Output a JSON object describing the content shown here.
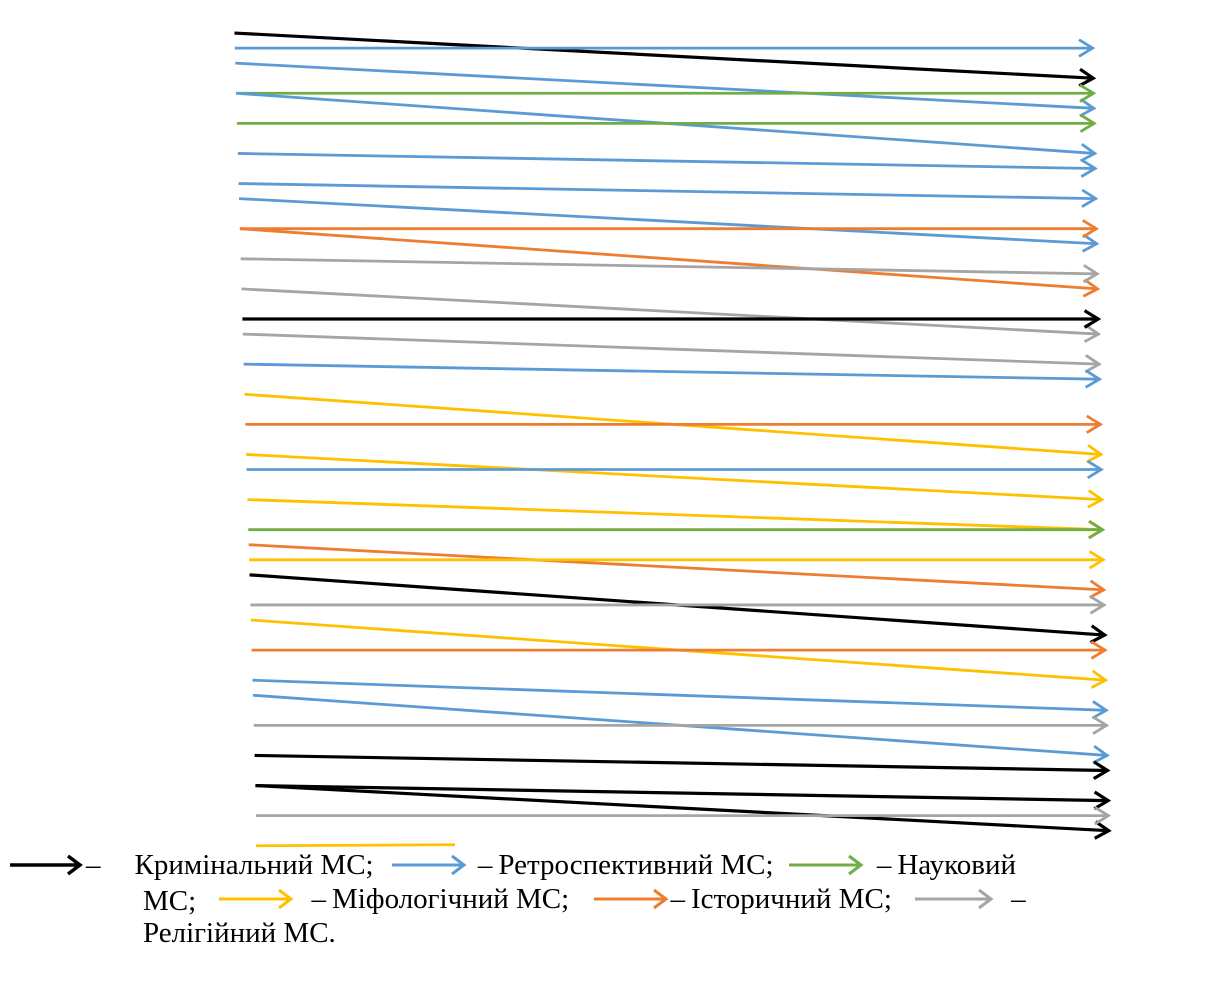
{
  "colors": {
    "criminal": "#000000",
    "retrospective": "#5b9bd5",
    "scientific": "#70ad47",
    "mythological": "#ffc000",
    "historical": "#ed7d31",
    "religious": "#a5a5a5"
  },
  "arrows": [
    {
      "type": "criminal",
      "from": 1,
      "to": 4
    },
    {
      "type": "retrospective",
      "from": 2,
      "to": 2
    },
    {
      "type": "retrospective",
      "from": 3,
      "to": 6
    },
    {
      "type": "scientific",
      "from": 5,
      "to": 5
    },
    {
      "type": "retrospective",
      "from": 5,
      "to": 9
    },
    {
      "type": "scientific",
      "from": 7,
      "to": 7
    },
    {
      "type": "retrospective",
      "from": 9,
      "to": 10
    },
    {
      "type": "retrospective",
      "from": 11,
      "to": 12
    },
    {
      "type": "retrospective",
      "from": 12,
      "to": 15
    },
    {
      "type": "historical",
      "from": 14,
      "to": 14
    },
    {
      "type": "historical",
      "from": 14,
      "to": 18
    },
    {
      "type": "religious",
      "from": 16,
      "to": 17
    },
    {
      "type": "religious",
      "from": 18,
      "to": 21
    },
    {
      "type": "criminal",
      "from": 20,
      "to": 20
    },
    {
      "type": "religious",
      "from": 21,
      "to": 23
    },
    {
      "type": "retrospective",
      "from": 23,
      "to": 24
    },
    {
      "type": "mythological",
      "from": 25,
      "to": 29
    },
    {
      "type": "historical",
      "from": 27,
      "to": 27
    },
    {
      "type": "mythological",
      "from": 29,
      "to": 32
    },
    {
      "type": "retrospective",
      "from": 30,
      "to": 30
    },
    {
      "type": "mythological",
      "from": 32,
      "to": 34
    },
    {
      "type": "scientific",
      "from": 34,
      "to": 34
    },
    {
      "type": "historical",
      "from": 35,
      "to": 38
    },
    {
      "type": "mythological",
      "from": 36,
      "to": 36
    },
    {
      "type": "criminal",
      "from": 37,
      "to": 41
    },
    {
      "type": "religious",
      "from": 39,
      "to": 39
    },
    {
      "type": "mythological",
      "from": 40,
      "to": 44
    },
    {
      "type": "historical",
      "from": 42,
      "to": 42
    },
    {
      "type": "retrospective",
      "from": 44,
      "to": 46
    },
    {
      "type": "retrospective",
      "from": 45,
      "to": 49
    },
    {
      "type": "religious",
      "from": 47,
      "to": 47
    },
    {
      "type": "criminal",
      "from": 49,
      "to": 50
    },
    {
      "type": "criminal",
      "from": 51,
      "to": 52
    },
    {
      "type": "criminal",
      "from": 51,
      "to": 54
    },
    {
      "type": "religious",
      "from": 53,
      "to": 53
    },
    {
      "type": "mythological",
      "from": 55,
      "to": null
    }
  ],
  "legend": {
    "criminal": "Кримінальний МС;",
    "retrospective": "Ретроспективний МС;",
    "scientific": "Науковий",
    "scientific_tail": "МС;",
    "mythological": "Міфологічний МС;",
    "historical": "Історичний МС;",
    "religious_dash": "–",
    "religious": "Релігійний МС.",
    "dash": "–"
  }
}
